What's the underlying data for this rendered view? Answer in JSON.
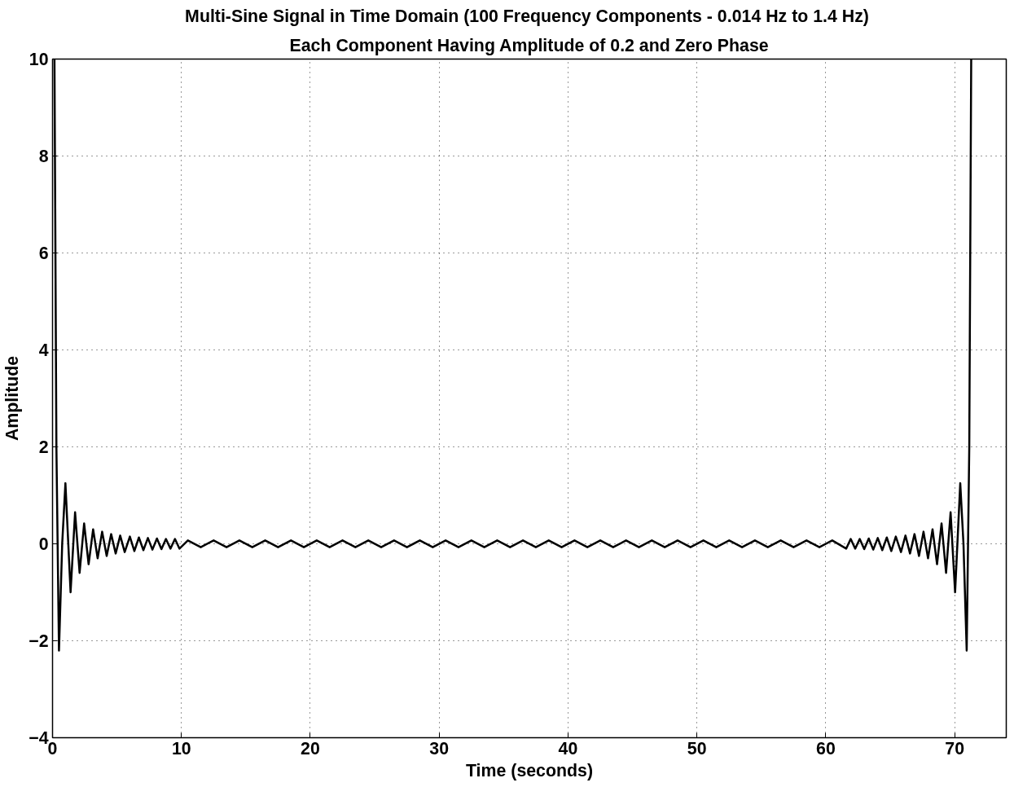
{
  "chart_data": {
    "type": "line",
    "title": "Multi-Sine Signal in  Time Domain (100 Frequency Components - 0.014 Hz to 1.4 Hz)",
    "subtitle": "Each Component Having Amplitude of 0.2 and Zero Phase",
    "xlabel": "Time (seconds)",
    "ylabel": "Amplitude",
    "x": [
      0.15,
      0.3,
      0.5,
      0.75,
      1.0,
      1.4,
      1.75,
      2.1,
      2.45,
      2.8,
      3.15,
      3.5,
      3.85,
      4.2,
      4.55,
      4.9,
      5.25,
      5.6,
      6.0,
      6.35,
      6.7,
      7.05,
      7.4,
      7.75,
      8.1,
      8.45,
      8.8,
      9.15,
      9.5,
      9.85,
      10.5,
      11.5,
      12.5,
      13.5,
      14.5,
      15.5,
      16.5,
      17.5,
      18.5,
      19.5,
      20.5,
      21.5,
      22.5,
      23.5,
      24.5,
      25.5,
      26.5,
      27.5,
      28.5,
      29.5,
      30.5,
      31.5,
      32.5,
      33.5,
      34.5,
      35.5,
      36.5,
      37.5,
      38.5,
      39.5,
      40.5,
      41.5,
      42.5,
      43.5,
      44.5,
      45.5,
      46.5,
      47.5,
      48.5,
      49.5,
      50.5,
      51.5,
      52.5,
      53.5,
      54.5,
      55.5,
      56.5,
      57.5,
      58.5,
      59.5,
      60.5,
      61.58,
      61.93,
      62.28,
      62.63,
      62.98,
      63.33,
      63.68,
      64.03,
      64.38,
      64.73,
      65.08,
      65.43,
      65.83,
      66.18,
      66.53,
      66.88,
      67.23,
      67.58,
      67.93,
      68.28,
      68.63,
      68.98,
      69.33,
      69.68,
      70.03,
      70.43,
      70.68,
      70.93,
      71.13,
      71.28
    ],
    "series": [
      {
        "color": "#000000",
        "values": [
          10,
          2,
          -2.2,
          0,
          1.25,
          -1.0,
          0.65,
          -0.6,
          0.42,
          -0.42,
          0.3,
          -0.3,
          0.25,
          -0.25,
          0.2,
          -0.2,
          0.17,
          -0.17,
          0.15,
          -0.15,
          0.13,
          -0.13,
          0.12,
          -0.12,
          0.11,
          -0.11,
          0.1,
          -0.1,
          0.1,
          -0.1,
          0.07,
          -0.07,
          0.07,
          -0.07,
          0.07,
          -0.07,
          0.07,
          -0.07,
          0.07,
          -0.07,
          0.07,
          -0.07,
          0.07,
          -0.07,
          0.07,
          -0.07,
          0.07,
          -0.07,
          0.07,
          -0.07,
          0.07,
          -0.07,
          0.07,
          -0.07,
          0.07,
          -0.07,
          0.07,
          -0.07,
          0.07,
          -0.07,
          0.07,
          -0.07,
          0.07,
          -0.07,
          0.07,
          -0.07,
          0.07,
          -0.07,
          0.07,
          -0.07,
          0.07,
          -0.07,
          0.07,
          -0.07,
          0.07,
          -0.07,
          0.07,
          -0.07,
          0.07,
          -0.07,
          0.07,
          -0.1,
          0.1,
          -0.1,
          0.1,
          -0.11,
          0.11,
          -0.12,
          0.12,
          -0.13,
          0.13,
          -0.15,
          0.15,
          -0.17,
          0.17,
          -0.2,
          0.2,
          -0.25,
          0.25,
          -0.3,
          0.3,
          -0.42,
          0.42,
          -0.6,
          0.65,
          -1.0,
          1.25,
          0,
          -2.2,
          2,
          10
        ]
      }
    ],
    "xlim": [
      0,
      74
    ],
    "ylim": [
      -4,
      10
    ],
    "xticks": [
      0,
      10,
      20,
      30,
      40,
      50,
      60,
      70
    ],
    "yticks": [
      -4,
      -2,
      0,
      2,
      4,
      6,
      8,
      10
    ],
    "grid": true,
    "line_style": "solid",
    "marker": "none"
  }
}
